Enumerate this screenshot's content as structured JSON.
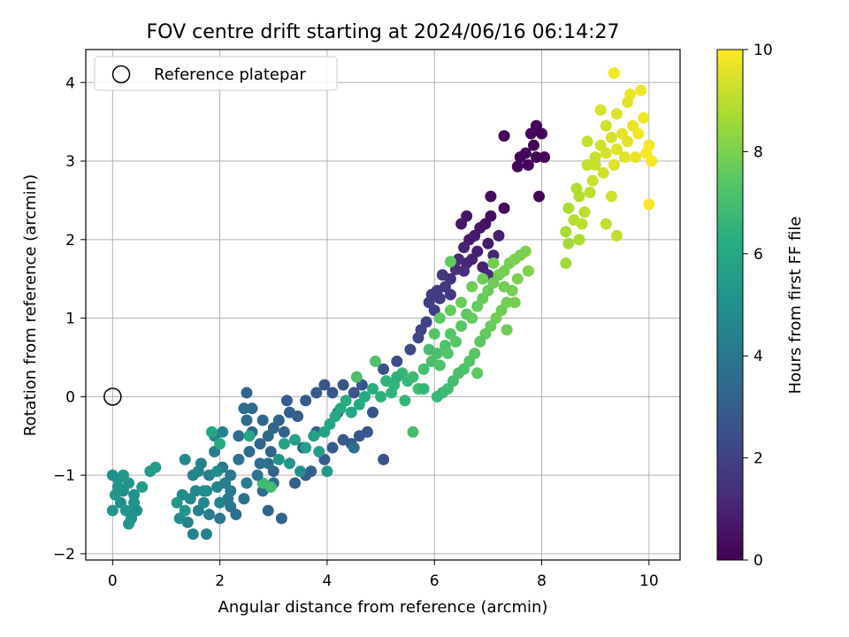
{
  "chart_data": {
    "type": "scatter",
    "title": "FOV centre drift starting at 2024/06/16 06:14:27",
    "xlabel": "Angular distance from reference (arcmin)",
    "ylabel": "Rotation from reference (arcmin)",
    "xlim": [
      -0.5,
      10.58
    ],
    "ylim": [
      -2.08,
      4.42
    ],
    "xticks": [
      0,
      2,
      4,
      6,
      8,
      10
    ],
    "yticks": [
      -2,
      -1,
      0,
      1,
      2,
      3,
      4
    ],
    "grid": true,
    "legend": {
      "placement": "top-left",
      "entries": [
        "Reference platepar"
      ]
    },
    "reference_point": {
      "x": 0,
      "y": 0,
      "label": "Reference platepar"
    },
    "colorbar": {
      "label": "Hours from first FF file",
      "range": [
        0,
        10
      ],
      "ticks": [
        0,
        2,
        4,
        6,
        8,
        10
      ],
      "colormap": "viridis"
    },
    "points": [
      [
        7.9,
        3.45,
        0.1
      ],
      [
        7.8,
        3.35,
        0.2
      ],
      [
        8.0,
        3.35,
        0.1
      ],
      [
        7.85,
        3.2,
        0.2
      ],
      [
        7.7,
        3.1,
        0.1
      ],
      [
        7.6,
        3.05,
        0.2
      ],
      [
        7.9,
        3.05,
        0.1
      ],
      [
        8.05,
        3.05,
        0.1
      ],
      [
        7.55,
        2.93,
        0.2
      ],
      [
        7.75,
        2.95,
        0.2
      ],
      [
        7.3,
        3.32,
        0.1
      ],
      [
        7.95,
        2.55,
        0.2
      ],
      [
        7.3,
        2.4,
        0.3
      ],
      [
        7.05,
        2.55,
        0.3
      ],
      [
        7.05,
        2.3,
        0.4
      ],
      [
        6.95,
        2.2,
        0.5
      ],
      [
        6.85,
        2.15,
        0.6
      ],
      [
        6.75,
        2.05,
        0.7
      ],
      [
        6.65,
        2.0,
        0.8
      ],
      [
        6.8,
        1.85,
        0.9
      ],
      [
        6.7,
        1.75,
        1.0
      ],
      [
        6.55,
        1.9,
        1.0
      ],
      [
        6.6,
        1.7,
        1.1
      ],
      [
        6.45,
        1.75,
        1.2
      ],
      [
        6.55,
        1.6,
        1.3
      ],
      [
        6.4,
        1.62,
        1.4
      ],
      [
        6.3,
        1.5,
        1.5
      ],
      [
        6.15,
        1.55,
        1.6
      ],
      [
        6.05,
        1.35,
        1.7
      ],
      [
        6.2,
        1.4,
        1.6
      ],
      [
        5.95,
        1.3,
        1.8
      ],
      [
        5.9,
        1.2,
        1.9
      ],
      [
        6.0,
        1.1,
        1.8
      ],
      [
        5.85,
        0.95,
        2.0
      ],
      [
        5.75,
        0.85,
        2.1
      ],
      [
        5.7,
        0.75,
        2.2
      ],
      [
        6.1,
        1.25,
        1.8
      ],
      [
        6.3,
        1.3,
        1.7
      ],
      [
        7.0,
        1.95,
        0.8
      ],
      [
        7.2,
        2.05,
        0.9
      ],
      [
        7.1,
        1.8,
        1.1
      ],
      [
        6.9,
        1.65,
        1.0
      ],
      [
        7.0,
        1.55,
        1.3
      ],
      [
        6.5,
        2.2,
        0.7
      ],
      [
        6.6,
        2.3,
        0.6
      ],
      [
        5.55,
        0.6,
        2.3
      ],
      [
        5.3,
        0.45,
        2.4
      ],
      [
        5.05,
        0.35,
        2.5
      ],
      [
        4.85,
        -0.2,
        2.6
      ],
      [
        4.6,
        -0.5,
        2.7
      ],
      [
        4.3,
        -0.55,
        2.8
      ],
      [
        4.1,
        -0.65,
        2.9
      ],
      [
        4.45,
        -0.6,
        2.8
      ],
      [
        4.75,
        -0.45,
        2.7
      ],
      [
        5.05,
        -0.8,
        2.6
      ],
      [
        3.95,
        -0.8,
        2.9
      ],
      [
        3.7,
        -0.95,
        3.0
      ],
      [
        3.6,
        -1.0,
        3.0
      ],
      [
        3.4,
        -1.1,
        3.1
      ],
      [
        3.15,
        -1.55,
        3.2
      ],
      [
        3.0,
        -0.95,
        3.2
      ],
      [
        2.95,
        -0.7,
        3.3
      ],
      [
        2.75,
        -0.6,
        3.3
      ],
      [
        2.6,
        -0.45,
        3.4
      ],
      [
        2.5,
        -0.3,
        3.5
      ],
      [
        2.45,
        -0.15,
        3.5
      ],
      [
        2.8,
        -0.3,
        3.4
      ],
      [
        3.0,
        -0.4,
        3.3
      ],
      [
        3.2,
        -0.45,
        3.2
      ],
      [
        3.1,
        -0.3,
        3.3
      ],
      [
        2.9,
        -0.5,
        3.4
      ],
      [
        2.75,
        -0.85,
        3.5
      ],
      [
        2.55,
        -0.7,
        3.6
      ],
      [
        2.35,
        -0.5,
        3.6
      ],
      [
        2.5,
        0.05,
        3.4
      ],
      [
        2.6,
        -0.15,
        3.5
      ],
      [
        3.3,
        -0.2,
        3.1
      ],
      [
        3.25,
        -0.05,
        3.0
      ],
      [
        3.45,
        -0.25,
        3.0
      ],
      [
        3.6,
        -0.05,
        2.9
      ],
      [
        3.8,
        0.05,
        2.8
      ],
      [
        3.95,
        0.15,
        2.7
      ],
      [
        4.1,
        0.05,
        2.7
      ],
      [
        4.3,
        0.15,
        2.6
      ],
      [
        4.5,
        0.05,
        2.6
      ],
      [
        4.65,
        0.15,
        2.6
      ],
      [
        4.2,
        -0.2,
        2.9
      ],
      [
        3.8,
        -0.45,
        3.0
      ],
      [
        3.55,
        -0.65,
        3.1
      ],
      [
        2.9,
        -1.45,
        3.3
      ],
      [
        3.0,
        -1.1,
        3.5
      ],
      [
        2.8,
        -1.2,
        3.6
      ],
      [
        2.45,
        -1.3,
        3.7
      ],
      [
        2.3,
        -1.5,
        3.8
      ],
      [
        2.2,
        -1.4,
        3.9
      ],
      [
        2.0,
        -1.55,
        4.0
      ],
      [
        1.8,
        -1.5,
        4.2
      ],
      [
        1.6,
        -1.45,
        4.3
      ],
      [
        1.4,
        -1.6,
        4.4
      ],
      [
        1.5,
        -1.75,
        4.5
      ],
      [
        1.75,
        -1.75,
        4.4
      ],
      [
        2.15,
        -1.3,
        4.0
      ],
      [
        2.35,
        -0.8,
        3.8
      ],
      [
        2.2,
        -1.0,
        4.0
      ],
      [
        2.05,
        -0.9,
        4.1
      ],
      [
        1.9,
        -0.7,
        4.2
      ],
      [
        1.8,
        -1.0,
        4.3
      ],
      [
        1.65,
        -0.85,
        4.4
      ],
      [
        1.5,
        -1.0,
        4.5
      ],
      [
        1.35,
        -0.8,
        4.7
      ],
      [
        1.55,
        -1.2,
        4.6
      ],
      [
        1.75,
        -1.2,
        4.5
      ],
      [
        1.95,
        -1.15,
        4.4
      ],
      [
        2.1,
        -1.1,
        4.3
      ],
      [
        1.3,
        -1.25,
        4.8
      ],
      [
        1.25,
        -1.55,
        4.8
      ],
      [
        1.45,
        -1.3,
        4.7
      ],
      [
        1.7,
        -1.35,
        4.6
      ],
      [
        2.0,
        -1.35,
        4.4
      ],
      [
        2.2,
        -1.2,
        4.2
      ],
      [
        1.9,
        -0.5,
        4.5
      ],
      [
        2.05,
        -0.45,
        4.4
      ],
      [
        1.6,
        -0.95,
        4.6
      ],
      [
        0.0,
        -1.0,
        5.0
      ],
      [
        0.1,
        -1.05,
        5.1
      ],
      [
        0.2,
        -1.2,
        5.0
      ],
      [
        0.3,
        -1.1,
        5.2
      ],
      [
        0.4,
        -1.25,
        5.1
      ],
      [
        0.15,
        -1.35,
        5.0
      ],
      [
        0.25,
        -1.45,
        5.2
      ],
      [
        0.35,
        -1.55,
        5.1
      ],
      [
        0.45,
        -1.45,
        5.0
      ],
      [
        0.05,
        -1.25,
        5.3
      ],
      [
        0.0,
        -1.45,
        5.2
      ],
      [
        0.3,
        -1.62,
        5.2
      ],
      [
        0.4,
        -1.35,
        5.1
      ],
      [
        0.2,
        -1.0,
        5.3
      ],
      [
        0.1,
        -1.15,
        5.2
      ],
      [
        0.7,
        -0.95,
        5.4
      ],
      [
        0.8,
        -0.9,
        5.5
      ],
      [
        0.55,
        -1.15,
        5.4
      ],
      [
        1.2,
        -1.35,
        5.3
      ],
      [
        1.35,
        -1.45,
        5.2
      ],
      [
        1.85,
        -0.45,
        6.0
      ],
      [
        2.0,
        -0.6,
        6.1
      ],
      [
        2.55,
        -0.5,
        5.9
      ],
      [
        2.8,
        -1.1,
        6.8
      ],
      [
        2.95,
        -1.15,
        6.9
      ],
      [
        3.2,
        -0.6,
        5.8
      ],
      [
        3.4,
        -0.55,
        5.7
      ],
      [
        3.6,
        -0.65,
        5.6
      ],
      [
        3.75,
        -0.5,
        5.7
      ],
      [
        3.85,
        -0.7,
        5.5
      ],
      [
        3.95,
        -0.45,
        5.8
      ],
      [
        4.05,
        -0.35,
        5.9
      ],
      [
        4.15,
        -0.25,
        6.0
      ],
      [
        4.25,
        -0.15,
        6.1
      ],
      [
        4.35,
        -0.05,
        6.2
      ],
      [
        4.45,
        -0.2,
        6.0
      ],
      [
        4.6,
        -0.1,
        6.1
      ],
      [
        4.7,
        0.0,
        6.2
      ],
      [
        4.85,
        0.1,
        6.3
      ],
      [
        5.0,
        0.0,
        6.4
      ],
      [
        5.1,
        0.2,
        6.5
      ],
      [
        5.25,
        0.15,
        6.6
      ],
      [
        5.4,
        0.3,
        6.7
      ],
      [
        5.5,
        0.2,
        6.6
      ],
      [
        5.6,
        0.25,
        6.8
      ],
      [
        5.7,
        0.1,
        6.9
      ],
      [
        5.8,
        0.35,
        7.0
      ],
      [
        5.95,
        0.45,
        7.0
      ],
      [
        6.05,
        0.55,
        7.1
      ],
      [
        6.1,
        0.4,
        7.2
      ],
      [
        6.2,
        0.65,
        7.2
      ],
      [
        6.3,
        0.8,
        7.3
      ],
      [
        6.25,
        0.55,
        7.3
      ],
      [
        6.4,
        0.7,
        7.4
      ],
      [
        6.5,
        0.9,
        7.4
      ],
      [
        6.6,
        1.05,
        7.5
      ],
      [
        6.7,
        1.0,
        7.6
      ],
      [
        6.8,
        1.15,
        7.6
      ],
      [
        6.9,
        1.25,
        7.7
      ],
      [
        7.0,
        1.35,
        7.7
      ],
      [
        7.1,
        1.45,
        7.8
      ],
      [
        7.2,
        1.55,
        7.8
      ],
      [
        7.3,
        1.6,
        7.9
      ],
      [
        7.4,
        1.7,
        7.9
      ],
      [
        7.5,
        1.75,
        8.0
      ],
      [
        7.6,
        1.8,
        8.0
      ],
      [
        7.7,
        1.85,
        8.0
      ],
      [
        7.55,
        1.5,
        8.0
      ],
      [
        7.45,
        1.35,
        7.9
      ],
      [
        7.35,
        1.2,
        7.9
      ],
      [
        7.25,
        1.1,
        7.8
      ],
      [
        7.15,
        1.0,
        7.8
      ],
      [
        7.05,
        0.9,
        7.7
      ],
      [
        6.95,
        0.8,
        7.6
      ],
      [
        6.85,
        0.7,
        7.5
      ],
      [
        6.75,
        0.55,
        7.4
      ],
      [
        6.65,
        0.45,
        7.3
      ],
      [
        6.55,
        0.35,
        7.2
      ],
      [
        6.45,
        0.3,
        7.1
      ],
      [
        6.35,
        0.2,
        7.0
      ],
      [
        6.25,
        0.1,
        6.9
      ],
      [
        6.15,
        0.05,
        6.8
      ],
      [
        6.05,
        0.0,
        6.7
      ],
      [
        7.35,
        0.85,
        7.8
      ],
      [
        5.6,
        -0.45,
        7.0
      ],
      [
        5.45,
        -0.05,
        6.6
      ],
      [
        5.2,
        0.05,
        6.5
      ],
      [
        4.9,
        0.45,
        7.2
      ],
      [
        4.55,
        0.25,
        7.1
      ],
      [
        5.3,
        0.25,
        6.4
      ],
      [
        5.8,
        0.1,
        6.6
      ],
      [
        5.9,
        0.6,
        7.0
      ],
      [
        6.0,
        0.8,
        7.3
      ],
      [
        6.1,
        1.0,
        7.5
      ],
      [
        6.3,
        1.1,
        7.6
      ],
      [
        6.5,
        1.2,
        7.7
      ],
      [
        6.7,
        1.4,
        7.8
      ],
      [
        6.9,
        1.5,
        7.8
      ],
      [
        7.1,
        1.7,
        7.9
      ],
      [
        7.3,
        1.4,
        7.9
      ],
      [
        7.5,
        1.2,
        7.9
      ],
      [
        6.3,
        1.72,
        7.6
      ],
      [
        6.8,
        0.3,
        7.5
      ],
      [
        7.75,
        1.6,
        8.1
      ],
      [
        4.0,
        -0.95,
        5.4
      ],
      [
        3.3,
        -0.85,
        5.3
      ],
      [
        3.5,
        -0.95,
        5.0
      ],
      [
        3.1,
        -0.8,
        5.2
      ],
      [
        1.95,
        -0.95,
        4.8
      ],
      [
        1.7,
        -1.2,
        5.0
      ],
      [
        2.5,
        -1.1,
        4.1
      ],
      [
        2.7,
        -1.0,
        3.9
      ],
      [
        2.9,
        -0.85,
        3.7
      ],
      [
        4.5,
        -0.65,
        3.8
      ],
      [
        8.45,
        2.1,
        8.7
      ],
      [
        8.5,
        2.4,
        8.8
      ],
      [
        8.6,
        2.25,
        8.9
      ],
      [
        8.7,
        2.55,
        8.9
      ],
      [
        8.8,
        2.35,
        9.0
      ],
      [
        8.9,
        2.6,
        9.0
      ],
      [
        8.65,
        2.65,
        8.8
      ],
      [
        8.85,
        2.95,
        9.1
      ],
      [
        9.0,
        3.05,
        9.2
      ],
      [
        9.1,
        3.2,
        9.3
      ],
      [
        9.2,
        3.1,
        9.4
      ],
      [
        9.3,
        3.3,
        9.4
      ],
      [
        9.4,
        3.15,
        9.5
      ],
      [
        9.5,
        3.35,
        9.6
      ],
      [
        9.6,
        3.25,
        9.6
      ],
      [
        9.7,
        3.45,
        9.7
      ],
      [
        9.8,
        3.35,
        9.8
      ],
      [
        9.9,
        3.55,
        9.8
      ],
      [
        10.0,
        3.2,
        9.9
      ],
      [
        10.05,
        3.0,
        9.9
      ],
      [
        9.95,
        3.1,
        9.9
      ],
      [
        9.75,
        3.05,
        9.7
      ],
      [
        9.55,
        3.05,
        9.6
      ],
      [
        9.35,
        2.95,
        9.5
      ],
      [
        9.15,
        2.85,
        9.3
      ],
      [
        8.95,
        2.75,
        9.2
      ],
      [
        8.75,
        2.2,
        9.0
      ],
      [
        9.4,
        2.05,
        9.1
      ],
      [
        9.2,
        2.2,
        9.1
      ],
      [
        10.0,
        2.45,
        9.9
      ],
      [
        8.45,
        1.7,
        8.6
      ],
      [
        8.5,
        1.95,
        8.6
      ],
      [
        8.85,
        3.25,
        9.1
      ],
      [
        9.1,
        3.65,
        9.4
      ],
      [
        9.4,
        3.6,
        9.5
      ],
      [
        9.65,
        3.85,
        9.7
      ],
      [
        9.85,
        3.9,
        9.8
      ],
      [
        9.35,
        4.12,
        9.8
      ],
      [
        9.6,
        3.75,
        9.6
      ],
      [
        9.2,
        3.45,
        9.3
      ],
      [
        9.0,
        2.95,
        9.2
      ],
      [
        9.3,
        2.55,
        9.3
      ],
      [
        8.7,
        2.0,
        8.8
      ]
    ]
  }
}
